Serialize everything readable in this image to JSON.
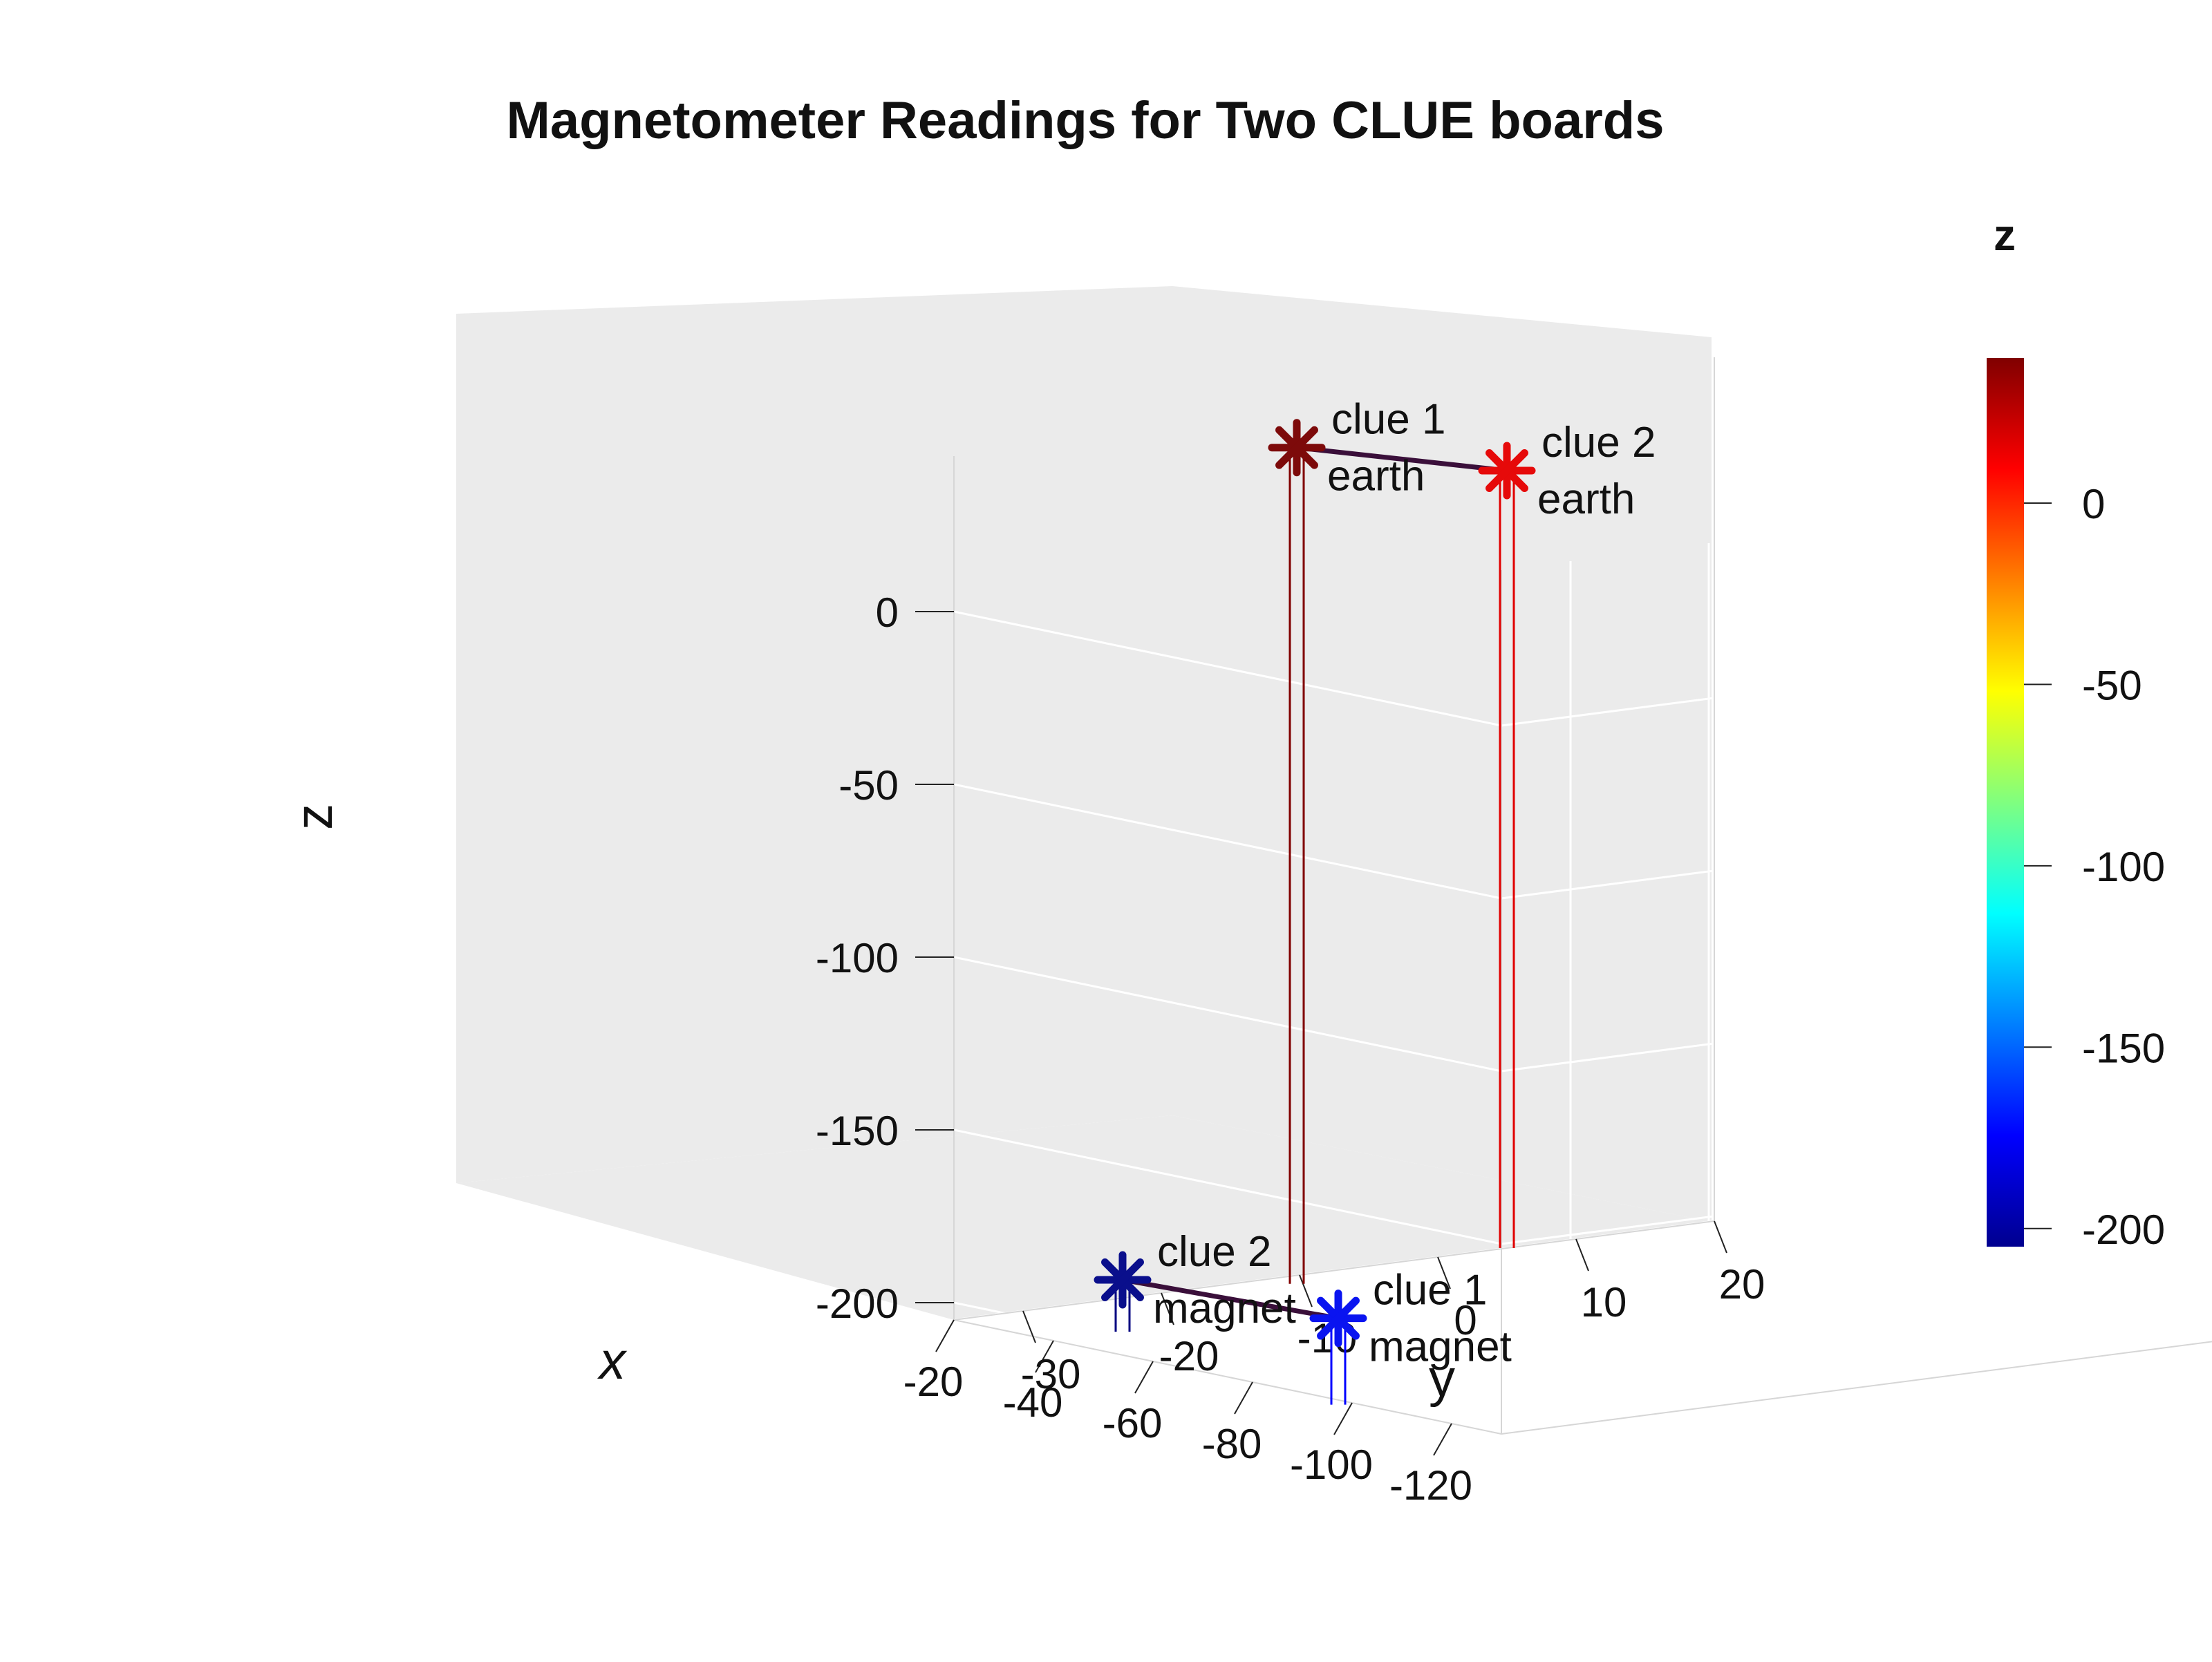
{
  "chart_data": {
    "type": "scatter",
    "title": "Magnetometer Readings for Two CLUE boards",
    "xlabel": "x",
    "ylabel": "y",
    "zlabel": "z",
    "xlim": [
      -130,
      -20
    ],
    "ylim": [
      -35,
      20
    ],
    "zlim": [
      -205,
      45
    ],
    "x_ticks": [
      -120,
      -100,
      -80,
      -60,
      -40,
      -20
    ],
    "y_ticks": [
      -30,
      -20,
      -10,
      0,
      10,
      20
    ],
    "z_ticks": [
      0,
      -50,
      -100,
      -150,
      -200
    ],
    "grid": true,
    "view": "3d",
    "points": [
      {
        "label_line1": "clue 1",
        "label_line2": "magnet",
        "x": -100,
        "y": -36,
        "z": -180,
        "color": "#0a14f0",
        "stem_color": "#0000ff"
      },
      {
        "label_line1": "clue 2",
        "label_line2": "magnet",
        "x": -40,
        "y": -30,
        "z": -190,
        "color": "#0a0f8c",
        "stem_color": "#000080"
      },
      {
        "label_line1": "clue 1",
        "label_line2": "earth",
        "x": -25,
        "y": -12,
        "z": 37,
        "color": "#7d0a0a",
        "stem_color": "#800000"
      },
      {
        "label_line1": "clue 2",
        "label_line2": "earth",
        "x": -20,
        "y": 5,
        "z": 20,
        "color": "#e60a0a",
        "stem_color": "#e00000"
      }
    ],
    "connections": [
      [
        0,
        1
      ],
      [
        2,
        3
      ]
    ],
    "connection_color": "#3a0f3a",
    "colorbar": {
      "title": "z",
      "colormap": "jet",
      "range": [
        -205,
        40
      ],
      "ticks": [
        0,
        -50,
        -100,
        -150,
        -200
      ]
    }
  }
}
